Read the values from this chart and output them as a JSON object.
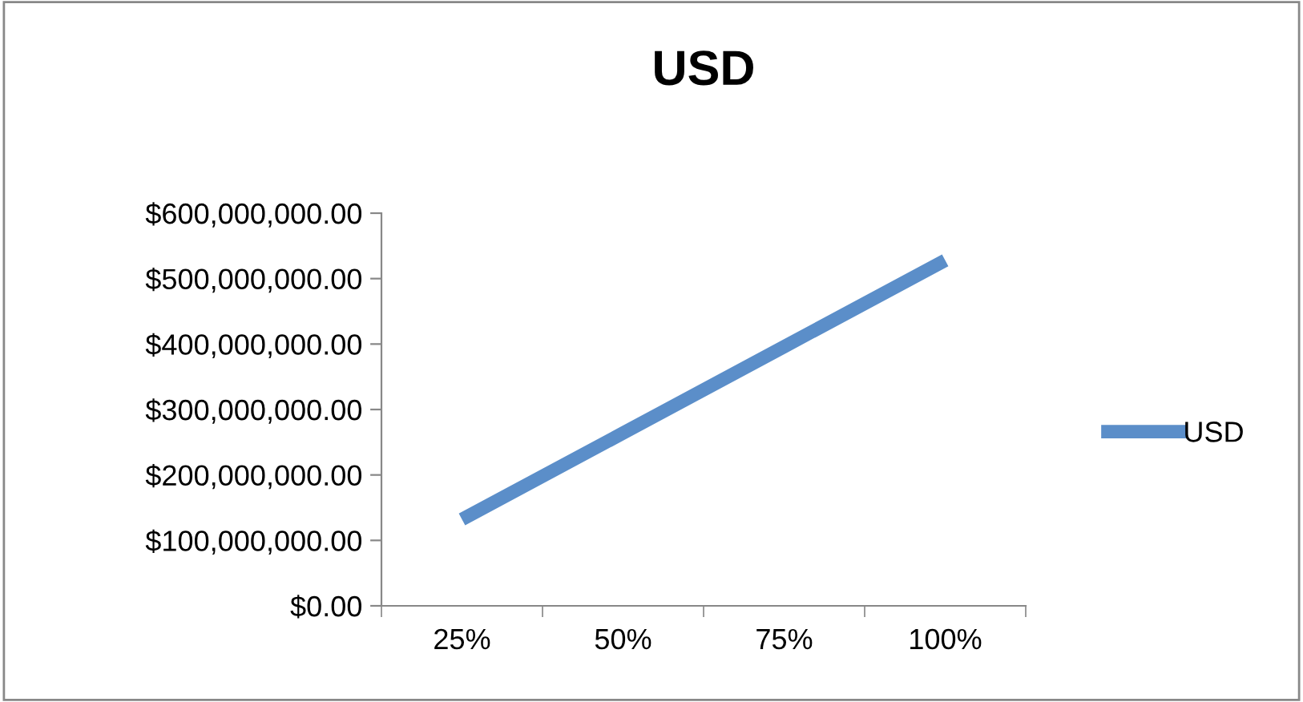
{
  "chart_data": {
    "type": "line",
    "title": "USD",
    "categories": [
      "25%",
      "50%",
      "75%",
      "100%"
    ],
    "series": [
      {
        "name": "USD",
        "color": "#5b8ec9",
        "values": [
          132000000,
          264000000,
          396000000,
          528000000
        ]
      }
    ],
    "ylim": [
      0,
      600000000
    ],
    "yticks": [
      {
        "value": 0,
        "label": "$0.00"
      },
      {
        "value": 100000000,
        "label": "$100,000,000.00"
      },
      {
        "value": 200000000,
        "label": "$200,000,000.00"
      },
      {
        "value": 300000000,
        "label": "$300,000,000.00"
      },
      {
        "value": 400000000,
        "label": "$400,000,000.00"
      },
      {
        "value": 500000000,
        "label": "$500,000,000.00"
      },
      {
        "value": 600000000,
        "label": "$600,000,000.00"
      }
    ],
    "grid": false,
    "legend": "right",
    "marker": "none",
    "line_style": "solid"
  }
}
